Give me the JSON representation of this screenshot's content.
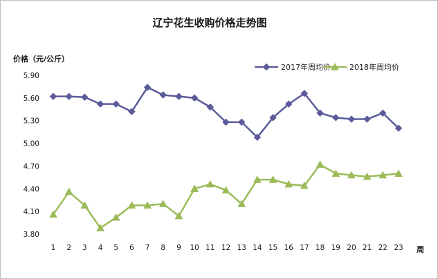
{
  "chart_data": {
    "type": "line",
    "title": "辽宁花生收购价格走势图",
    "ylabel": "价格（元/公斤）",
    "xlabel": "周",
    "x": [
      1,
      2,
      3,
      4,
      5,
      6,
      7,
      8,
      9,
      10,
      11,
      12,
      13,
      14,
      15,
      16,
      17,
      18,
      19,
      20,
      21,
      22,
      23
    ],
    "ylim": [
      3.8,
      5.9
    ],
    "yticks": [
      "5.90",
      "5.60",
      "5.30",
      "5.00",
      "4.70",
      "4.40",
      "4.10",
      "3.80"
    ],
    "ytick_values": [
      5.9,
      5.6,
      5.3,
      5.0,
      4.7,
      4.4,
      4.1,
      3.8
    ],
    "grid": false,
    "legend_position": "top-right",
    "series": [
      {
        "name": "2017年周均价",
        "marker": "diamond",
        "color": "#5b5b9a",
        "values": [
          5.62,
          5.62,
          5.61,
          5.52,
          5.52,
          5.42,
          5.74,
          5.64,
          5.62,
          5.6,
          5.48,
          5.28,
          5.28,
          5.08,
          5.34,
          5.52,
          5.66,
          5.4,
          5.34,
          5.32,
          5.32,
          5.4,
          5.2
        ]
      },
      {
        "name": "2018年周均价",
        "marker": "triangle",
        "color": "#9bbb59",
        "values": [
          4.06,
          4.36,
          4.18,
          3.88,
          4.02,
          4.18,
          4.18,
          4.2,
          4.04,
          4.4,
          4.46,
          4.38,
          4.2,
          4.52,
          4.52,
          4.46,
          4.44,
          4.72,
          4.6,
          4.58,
          4.56,
          4.58,
          4.6
        ]
      }
    ]
  }
}
